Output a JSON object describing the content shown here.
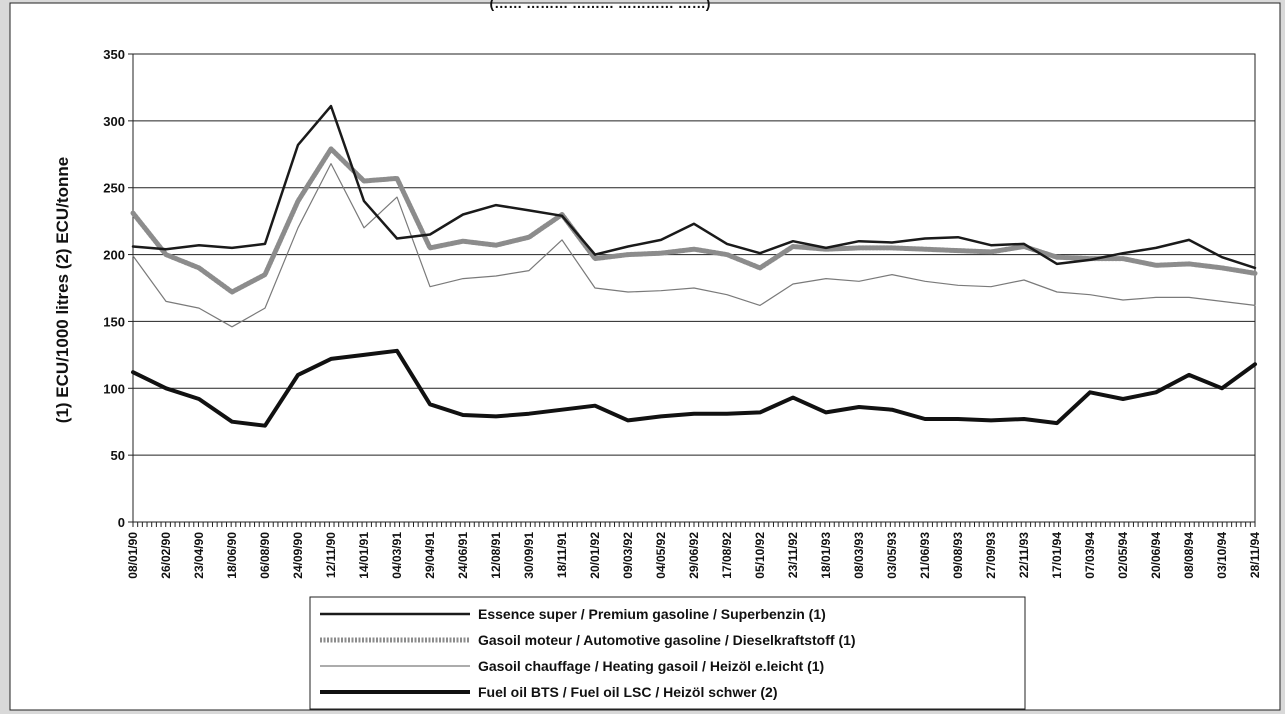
{
  "page": {
    "top_fragment": "(…… ……… ……… ………… ……)"
  },
  "chart_data": {
    "type": "line",
    "title": "",
    "ylabel": "(1) ECU/1000 litres (2) ECU/tonne",
    "xlabel": "",
    "ylim": [
      0,
      350
    ],
    "yticks": [
      0,
      50,
      100,
      150,
      200,
      250,
      300,
      350
    ],
    "grid": "horizontal",
    "legend_position": "bottom",
    "x": [
      "08/01/90",
      "26/02/90",
      "23/04/90",
      "18/06/90",
      "06/08/90",
      "24/09/90",
      "12/11/90",
      "14/01/91",
      "04/03/91",
      "29/04/91",
      "24/06/91",
      "12/08/91",
      "30/09/91",
      "18/11/91",
      "20/01/92",
      "09/03/92",
      "04/05/92",
      "29/06/92",
      "17/08/92",
      "05/10/92",
      "23/11/92",
      "18/01/93",
      "08/03/93",
      "03/05/93",
      "21/06/93",
      "09/08/93",
      "27/09/93",
      "22/11/93",
      "17/01/94",
      "07/03/94",
      "02/05/94",
      "20/06/94",
      "08/08/94",
      "03/10/94",
      "28/11/94"
    ],
    "series": [
      {
        "name": "Essence super / Premium gasoline / Superbenzin (1)",
        "color": "#1a1a1a",
        "style": "solid-medium",
        "points": [
          [
            "08/01/90",
            206
          ],
          [
            "26/02/90",
            204
          ],
          [
            "23/04/90",
            207
          ],
          [
            "18/06/90",
            205
          ],
          [
            "06/08/90",
            208
          ],
          [
            "24/09/90",
            282
          ],
          [
            "12/11/90",
            311
          ],
          [
            "14/01/91",
            240
          ],
          [
            "04/03/91",
            212
          ],
          [
            "29/04/91",
            215
          ],
          [
            "24/06/91",
            230
          ],
          [
            "12/08/91",
            237
          ],
          [
            "30/09/91",
            233
          ],
          [
            "18/11/91",
            229
          ],
          [
            "20/01/92",
            200
          ],
          [
            "09/03/92",
            206
          ],
          [
            "04/05/92",
            211
          ],
          [
            "29/06/92",
            223
          ],
          [
            "17/08/92",
            208
          ],
          [
            "05/10/92",
            201
          ],
          [
            "23/11/92",
            210
          ],
          [
            "18/01/93",
            205
          ],
          [
            "08/03/93",
            210
          ],
          [
            "03/05/93",
            209
          ],
          [
            "21/06/93",
            212
          ],
          [
            "09/08/93",
            213
          ],
          [
            "27/09/93",
            207
          ],
          [
            "22/11/93",
            208
          ],
          [
            "17/01/94",
            193
          ],
          [
            "07/03/94",
            196
          ],
          [
            "02/05/94",
            201
          ],
          [
            "20/06/94",
            205
          ],
          [
            "08/08/94",
            211
          ],
          [
            "03/10/94",
            198
          ],
          [
            "28/11/94",
            190
          ]
        ]
      },
      {
        "name": "Gasoil moteur / Automotive gasoline / Dieselkraftstoff (1)",
        "color": "#8c8c8c",
        "style": "solid-thick",
        "points": [
          [
            "08/01/90",
            231
          ],
          [
            "26/02/90",
            200
          ],
          [
            "23/04/90",
            190
          ],
          [
            "18/06/90",
            172
          ],
          [
            "06/08/90",
            185
          ],
          [
            "24/09/90",
            240
          ],
          [
            "12/11/90",
            279
          ],
          [
            "14/01/91",
            255
          ],
          [
            "04/03/91",
            257
          ],
          [
            "29/04/91",
            205
          ],
          [
            "24/06/91",
            210
          ],
          [
            "12/08/91",
            207
          ],
          [
            "30/09/91",
            213
          ],
          [
            "18/11/91",
            230
          ],
          [
            "20/01/92",
            197
          ],
          [
            "09/03/92",
            200
          ],
          [
            "04/05/92",
            201
          ],
          [
            "29/06/92",
            204
          ],
          [
            "17/08/92",
            200
          ],
          [
            "05/10/92",
            190
          ],
          [
            "23/11/92",
            206
          ],
          [
            "18/01/93",
            204
          ],
          [
            "08/03/93",
            205
          ],
          [
            "03/05/93",
            205
          ],
          [
            "21/06/93",
            204
          ],
          [
            "09/08/93",
            203
          ],
          [
            "27/09/93",
            202
          ],
          [
            "22/11/93",
            206
          ],
          [
            "17/01/94",
            198
          ],
          [
            "07/03/94",
            197
          ],
          [
            "02/05/94",
            197
          ],
          [
            "20/06/94",
            192
          ],
          [
            "08/08/94",
            193
          ],
          [
            "03/10/94",
            190
          ],
          [
            "28/11/94",
            186
          ]
        ]
      },
      {
        "name": "Gasoil chauffage / Heating gasoil / Heizöl e.leicht (1)",
        "color": "#7a7a7a",
        "style": "solid-thin",
        "points": [
          [
            "08/01/90",
            199
          ],
          [
            "26/02/90",
            165
          ],
          [
            "23/04/90",
            160
          ],
          [
            "18/06/90",
            146
          ],
          [
            "06/08/90",
            160
          ],
          [
            "24/09/90",
            220
          ],
          [
            "12/11/90",
            268
          ],
          [
            "14/01/91",
            220
          ],
          [
            "04/03/91",
            243
          ],
          [
            "29/04/91",
            176
          ],
          [
            "24/06/91",
            182
          ],
          [
            "12/08/91",
            184
          ],
          [
            "30/09/91",
            188
          ],
          [
            "18/11/91",
            211
          ],
          [
            "20/01/92",
            175
          ],
          [
            "09/03/92",
            172
          ],
          [
            "04/05/92",
            173
          ],
          [
            "29/06/92",
            175
          ],
          [
            "17/08/92",
            170
          ],
          [
            "05/10/92",
            162
          ],
          [
            "23/11/92",
            178
          ],
          [
            "18/01/93",
            182
          ],
          [
            "08/03/93",
            180
          ],
          [
            "03/05/93",
            185
          ],
          [
            "21/06/93",
            180
          ],
          [
            "09/08/93",
            177
          ],
          [
            "27/09/93",
            176
          ],
          [
            "22/11/93",
            181
          ],
          [
            "17/01/94",
            172
          ],
          [
            "07/03/94",
            170
          ],
          [
            "02/05/94",
            166
          ],
          [
            "20/06/94",
            168
          ],
          [
            "08/08/94",
            168
          ],
          [
            "03/10/94",
            165
          ],
          [
            "28/11/94",
            162
          ]
        ]
      },
      {
        "name": "Fuel oil BTS / Fuel oil LSC / Heizöl schwer (2)",
        "color": "#111111",
        "style": "solid-heavy",
        "points": [
          [
            "08/01/90",
            112
          ],
          [
            "26/02/90",
            100
          ],
          [
            "23/04/90",
            92
          ],
          [
            "18/06/90",
            75
          ],
          [
            "06/08/90",
            72
          ],
          [
            "24/09/90",
            110
          ],
          [
            "12/11/90",
            122
          ],
          [
            "14/01/91",
            125
          ],
          [
            "04/03/91",
            128
          ],
          [
            "29/04/91",
            88
          ],
          [
            "24/06/91",
            80
          ],
          [
            "12/08/91",
            79
          ],
          [
            "30/09/91",
            81
          ],
          [
            "18/11/91",
            84
          ],
          [
            "20/01/92",
            87
          ],
          [
            "09/03/92",
            76
          ],
          [
            "04/05/92",
            79
          ],
          [
            "29/06/92",
            81
          ],
          [
            "17/08/92",
            81
          ],
          [
            "05/10/92",
            82
          ],
          [
            "23/11/92",
            93
          ],
          [
            "18/01/93",
            82
          ],
          [
            "08/03/93",
            86
          ],
          [
            "03/05/93",
            84
          ],
          [
            "21/06/93",
            77
          ],
          [
            "09/08/93",
            77
          ],
          [
            "27/09/93",
            76
          ],
          [
            "22/11/93",
            77
          ],
          [
            "17/01/94",
            74
          ],
          [
            "07/03/94",
            97
          ],
          [
            "02/05/94",
            92
          ],
          [
            "20/06/94",
            97
          ],
          [
            "08/08/94",
            110
          ],
          [
            "03/10/94",
            100
          ],
          [
            "28/11/94",
            118
          ]
        ]
      }
    ]
  }
}
